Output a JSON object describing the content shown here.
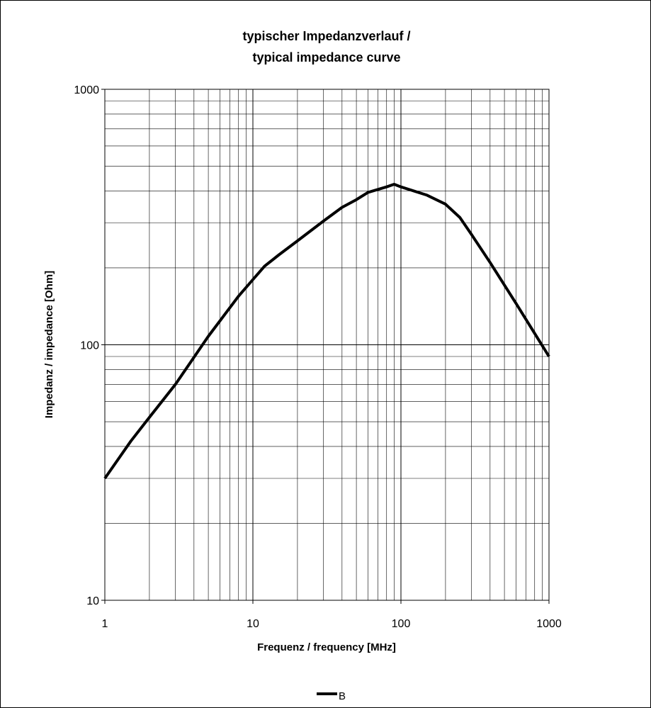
{
  "chart_data": {
    "type": "line",
    "title": [
      "typischer Impedanzverlauf /",
      "typical impedance curve"
    ],
    "xlabel": "Frequenz / frequency [MHz]",
    "ylabel": "Impedanz / impedance [Ohm]",
    "x_scale": "log",
    "y_scale": "log",
    "xlim": [
      1,
      1000
    ],
    "ylim": [
      10,
      1000
    ],
    "x_ticks": [
      "1",
      "10",
      "100",
      "1000"
    ],
    "y_ticks": [
      "10",
      "100",
      "1000"
    ],
    "grid": true,
    "legend_position": "bottom",
    "series": [
      {
        "name": "B",
        "color": "#000000",
        "x": [
          1,
          1.5,
          2,
          3,
          5,
          8,
          10,
          12,
          15,
          20,
          30,
          40,
          50,
          60,
          80,
          90,
          100,
          150,
          200,
          250,
          300,
          400,
          600,
          1000
        ],
        "y": [
          30,
          42,
          52,
          70,
          108,
          155,
          180,
          203,
          225,
          255,
          305,
          345,
          370,
          395,
          415,
          425,
          415,
          385,
          355,
          315,
          270,
          210,
          145,
          90
        ]
      }
    ]
  }
}
